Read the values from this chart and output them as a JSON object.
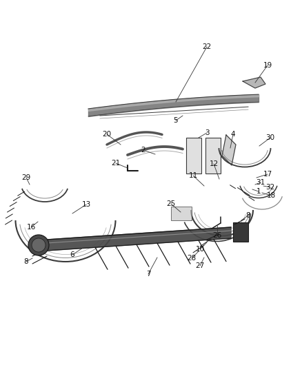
{
  "bg_color": "#ffffff",
  "lc": "#3a3a3a",
  "dc": "#1a1a1a",
  "gray1": "#555555",
  "gray2": "#888888",
  "gray3": "#aaaaaa",
  "gray4": "#cccccc",
  "figsize": [
    4.38,
    5.33
  ],
  "dpi": 100,
  "xlim": [
    0,
    438
  ],
  "ylim": [
    0,
    533
  ]
}
